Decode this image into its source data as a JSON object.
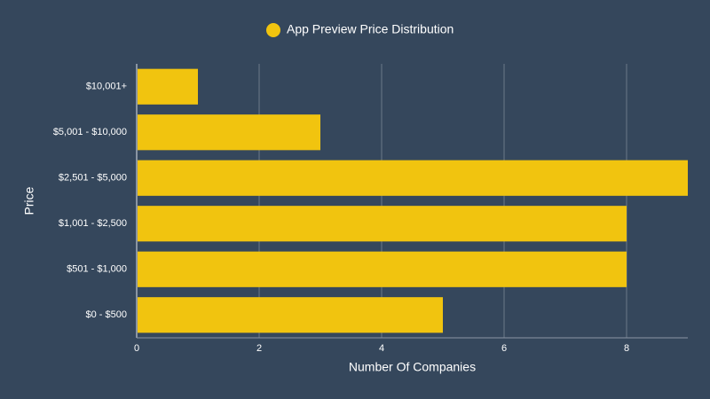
{
  "chart_data": {
    "type": "bar",
    "orientation": "horizontal",
    "categories": [
      "$10,001+",
      "$5,001 - $10,000",
      "$2,501 - $5,000",
      "$1,001 - $2,500",
      "$501 - $1,000",
      "$0 - $500"
    ],
    "series": [
      {
        "name": "App Preview Price Distribution",
        "color": "#f1c40f",
        "values": [
          1,
          3,
          9,
          8,
          8,
          5
        ]
      }
    ],
    "xlim": [
      0,
      9
    ],
    "xticks": [
      0,
      2,
      4,
      6,
      8
    ],
    "x_label": "Number Of Companies",
    "y_label": "Price",
    "grid": true
  }
}
